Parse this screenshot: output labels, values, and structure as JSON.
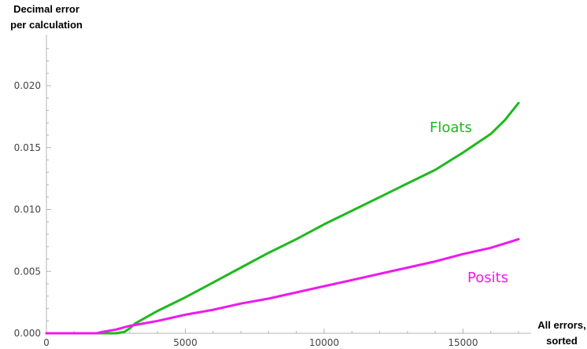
{
  "chart_data": {
    "type": "line",
    "title": "",
    "ylabel": "Decimal error\nper calculation",
    "xlabel": "All errors,\nsorted",
    "xlim": [
      0,
      17000
    ],
    "ylim": [
      0,
      0.0235
    ],
    "xticks": [
      "0",
      "5000",
      "10000",
      "15000"
    ],
    "xtick_values": [
      0,
      5000,
      10000,
      15000
    ],
    "yticks": [
      "0.000",
      "0.005",
      "0.010",
      "0.015",
      "0.020"
    ],
    "ytick_values": [
      0,
      0.005,
      0.01,
      0.015,
      0.02
    ],
    "grid": false,
    "legend": "inline labels",
    "series": [
      {
        "name": "Floats",
        "color": "#1fb81f",
        "x": [
          0,
          1500,
          2500,
          2800,
          3000,
          3200,
          4000,
          5000,
          6000,
          7000,
          8000,
          9000,
          10000,
          11000,
          12000,
          13000,
          14000,
          15000,
          16000,
          16500,
          17000
        ],
        "y": [
          0,
          0,
          0,
          0.0001,
          0.0004,
          0.0008,
          0.0018,
          0.0029,
          0.0041,
          0.0053,
          0.0065,
          0.0076,
          0.0088,
          0.0099,
          0.011,
          0.0121,
          0.0132,
          0.0146,
          0.0161,
          0.0172,
          0.0186
        ]
      },
      {
        "name": "Posits",
        "color": "#ee19ee",
        "x": [
          0,
          1500,
          1800,
          2000,
          2500,
          3000,
          4000,
          5000,
          6000,
          7000,
          8000,
          9000,
          10000,
          11000,
          12000,
          13000,
          14000,
          15000,
          16000,
          17000
        ],
        "y": [
          0,
          0,
          0,
          0.0001,
          0.0003,
          0.0006,
          0.001,
          0.0015,
          0.0019,
          0.0024,
          0.0028,
          0.0033,
          0.0038,
          0.0043,
          0.0048,
          0.0053,
          0.0058,
          0.0064,
          0.0069,
          0.0076
        ]
      }
    ]
  }
}
